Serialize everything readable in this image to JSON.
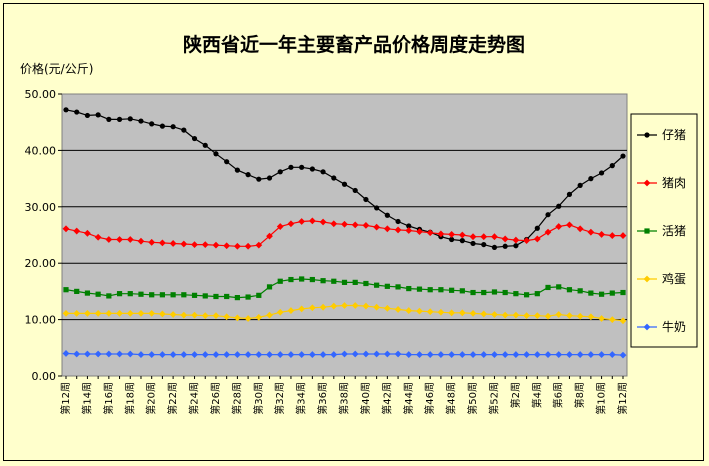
{
  "chart_data": {
    "type": "line",
    "title": "陕西省近一年主要畜产品价格周度走势图",
    "ylabel": "价格(元/公斤)",
    "xlabel": "",
    "ylim": [
      0,
      50
    ],
    "yticks": [
      "0.00",
      "10.00",
      "20.00",
      "30.00",
      "40.00",
      "50.00"
    ],
    "grid": true,
    "legend_position": "right",
    "plot_background": "#c0c0c0",
    "categories": [
      "第12周",
      "第13周",
      "第14周",
      "第15周",
      "第16周",
      "第17周",
      "第18周",
      "第19周",
      "第20周",
      "第21周",
      "第22周",
      "第23周",
      "第24周",
      "第25周",
      "第26周",
      "第27周",
      "第28周",
      "第29周",
      "第30周",
      "第31周",
      "第32周",
      "第33周",
      "第34周",
      "第35周",
      "第36周",
      "第37周",
      "第38周",
      "第39周",
      "第40周",
      "第41周",
      "第42周",
      "第43周",
      "第44周",
      "第45周",
      "第46周",
      "第47周",
      "第48周",
      "第49周",
      "第50周",
      "第51周",
      "第52周",
      "第1周",
      "第2周",
      "第3周",
      "第4周",
      "第5周",
      "第6周",
      "第7周",
      "第8周",
      "第9周",
      "第10周",
      "第11周",
      "第12周"
    ],
    "series": [
      {
        "name": "仔猪",
        "color": "#000000",
        "marker": "circle",
        "values": [
          47.2,
          46.8,
          46.2,
          46.3,
          45.5,
          45.5,
          45.6,
          45.2,
          44.7,
          44.3,
          44.2,
          43.6,
          42.1,
          40.9,
          39.4,
          38.0,
          36.5,
          35.7,
          34.9,
          35.1,
          36.2,
          37.0,
          37.0,
          36.7,
          36.2,
          35.1,
          34.0,
          32.9,
          31.3,
          29.8,
          28.5,
          27.4,
          26.6,
          26.0,
          25.5,
          24.7,
          24.2,
          24.0,
          23.5,
          23.3,
          22.8,
          23.0,
          23.1,
          24.2,
          26.2,
          28.6,
          30.1,
          32.2,
          33.8,
          35.0,
          36.0,
          37.3,
          39.0
        ]
      },
      {
        "name": "猪肉",
        "color": "#ff0000",
        "marker": "diamond",
        "values": [
          26.1,
          25.7,
          25.3,
          24.6,
          24.2,
          24.2,
          24.2,
          23.9,
          23.7,
          23.6,
          23.5,
          23.4,
          23.3,
          23.3,
          23.2,
          23.1,
          23.0,
          23.0,
          23.2,
          24.8,
          26.5,
          27.0,
          27.4,
          27.5,
          27.3,
          27.0,
          26.9,
          26.8,
          26.7,
          26.4,
          26.1,
          25.9,
          25.8,
          25.6,
          25.4,
          25.2,
          25.1,
          25.0,
          24.7,
          24.7,
          24.7,
          24.3,
          24.1,
          24.0,
          24.3,
          25.5,
          26.5,
          26.8,
          26.1,
          25.5,
          25.1,
          24.9,
          24.9
        ]
      },
      {
        "name": "活猪",
        "color": "#008000",
        "marker": "square",
        "values": [
          15.3,
          15.0,
          14.7,
          14.5,
          14.2,
          14.6,
          14.6,
          14.5,
          14.4,
          14.4,
          14.4,
          14.4,
          14.3,
          14.2,
          14.1,
          14.1,
          13.9,
          14.0,
          14.3,
          15.8,
          16.8,
          17.1,
          17.2,
          17.1,
          16.9,
          16.8,
          16.6,
          16.6,
          16.4,
          16.1,
          15.9,
          15.8,
          15.5,
          15.4,
          15.3,
          15.3,
          15.2,
          15.1,
          14.8,
          14.8,
          14.9,
          14.8,
          14.6,
          14.4,
          14.6,
          15.7,
          15.8,
          15.3,
          15.1,
          14.7,
          14.5,
          14.7,
          14.8
        ]
      },
      {
        "name": "鸡蛋",
        "color": "#ffcc00",
        "marker": "diamond",
        "values": [
          11.1,
          11.1,
          11.1,
          11.1,
          11.1,
          11.1,
          11.1,
          11.1,
          11.1,
          11.0,
          10.9,
          10.8,
          10.8,
          10.7,
          10.7,
          10.5,
          10.3,
          10.2,
          10.4,
          10.8,
          11.3,
          11.6,
          11.9,
          12.1,
          12.2,
          12.4,
          12.5,
          12.5,
          12.4,
          12.2,
          12.0,
          11.8,
          11.6,
          11.5,
          11.4,
          11.3,
          11.2,
          11.2,
          11.1,
          11.0,
          10.9,
          10.8,
          10.8,
          10.7,
          10.7,
          10.6,
          10.9,
          10.7,
          10.6,
          10.5,
          10.2,
          10.0,
          9.8
        ]
      },
      {
        "name": "牛奶",
        "color": "#3366ff",
        "marker": "diamond",
        "values": [
          4.0,
          3.9,
          3.9,
          3.9,
          3.9,
          3.9,
          3.9,
          3.8,
          3.8,
          3.8,
          3.8,
          3.8,
          3.8,
          3.8,
          3.8,
          3.8,
          3.8,
          3.8,
          3.8,
          3.8,
          3.8,
          3.8,
          3.8,
          3.8,
          3.8,
          3.8,
          3.9,
          3.9,
          3.9,
          3.9,
          3.9,
          3.9,
          3.8,
          3.8,
          3.8,
          3.8,
          3.8,
          3.8,
          3.8,
          3.8,
          3.8,
          3.8,
          3.8,
          3.8,
          3.8,
          3.8,
          3.8,
          3.8,
          3.8,
          3.8,
          3.8,
          3.8,
          3.7
        ]
      }
    ]
  }
}
